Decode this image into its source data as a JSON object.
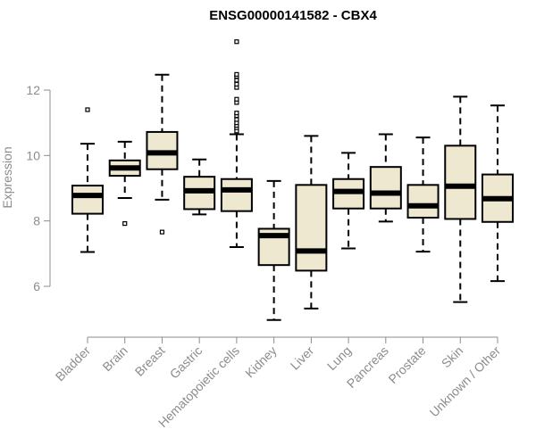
{
  "chart_data": {
    "type": "box",
    "title": "ENSG00000141582 - CBX4",
    "xlabel": "",
    "ylabel": "Expression",
    "ylim": [
      4.8,
      13.8
    ],
    "yticks": [
      6,
      8,
      10,
      12
    ],
    "grid": false,
    "box_color": "#efe8d0",
    "categories": [
      "Bladder",
      "Brain",
      "Breast",
      "Gastric",
      "Hematopoietic cells",
      "Kidney",
      "Liver",
      "Lung",
      "Pancreas",
      "Prostate",
      "Skin",
      "Unknown / Other"
    ],
    "boxes": [
      {
        "category": "Bladder",
        "whisker_low": 7.05,
        "q1": 8.22,
        "median": 8.78,
        "q3": 9.08,
        "whisker_high": 10.36,
        "outliers": [
          11.4
        ]
      },
      {
        "category": "Brain",
        "whisker_low": 8.7,
        "q1": 9.38,
        "median": 9.62,
        "q3": 9.85,
        "whisker_high": 10.42,
        "outliers": [
          7.92
        ]
      },
      {
        "category": "Breast",
        "whisker_low": 8.65,
        "q1": 9.58,
        "median": 10.08,
        "q3": 10.72,
        "whisker_high": 12.47,
        "outliers": [
          7.66
        ]
      },
      {
        "category": "Gastric",
        "whisker_low": 8.2,
        "q1": 8.36,
        "median": 8.92,
        "q3": 9.35,
        "whisker_high": 9.88,
        "outliers": []
      },
      {
        "category": "Hematopoietic cells",
        "whisker_low": 7.2,
        "q1": 8.3,
        "median": 8.95,
        "q3": 9.28,
        "whisker_high": 10.65,
        "outliers": [
          10.75,
          10.85,
          10.92,
          11.0,
          11.1,
          11.22,
          11.3,
          11.62,
          11.72,
          12.08,
          12.18,
          12.3,
          12.42,
          12.48,
          13.48
        ]
      },
      {
        "category": "Kidney",
        "whisker_low": 4.97,
        "q1": 6.65,
        "median": 7.55,
        "q3": 7.76,
        "whisker_high": 9.22,
        "outliers": []
      },
      {
        "category": "Liver",
        "whisker_low": 5.32,
        "q1": 6.48,
        "median": 7.08,
        "q3": 9.1,
        "whisker_high": 10.6,
        "outliers": []
      },
      {
        "category": "Lung",
        "whisker_low": 7.16,
        "q1": 8.38,
        "median": 8.9,
        "q3": 9.28,
        "whisker_high": 10.08,
        "outliers": []
      },
      {
        "category": "Pancreas",
        "whisker_low": 7.98,
        "q1": 8.38,
        "median": 8.85,
        "q3": 9.65,
        "whisker_high": 10.65,
        "outliers": []
      },
      {
        "category": "Prostate",
        "whisker_low": 7.06,
        "q1": 8.1,
        "median": 8.46,
        "q3": 9.1,
        "whisker_high": 10.55,
        "outliers": []
      },
      {
        "category": "Skin",
        "whisker_low": 5.52,
        "q1": 8.06,
        "median": 9.06,
        "q3": 10.3,
        "whisker_high": 11.8,
        "outliers": []
      },
      {
        "category": "Unknown / Other",
        "whisker_low": 6.16,
        "q1": 7.97,
        "median": 8.68,
        "q3": 9.42,
        "whisker_high": 11.53,
        "outliers": []
      }
    ]
  }
}
